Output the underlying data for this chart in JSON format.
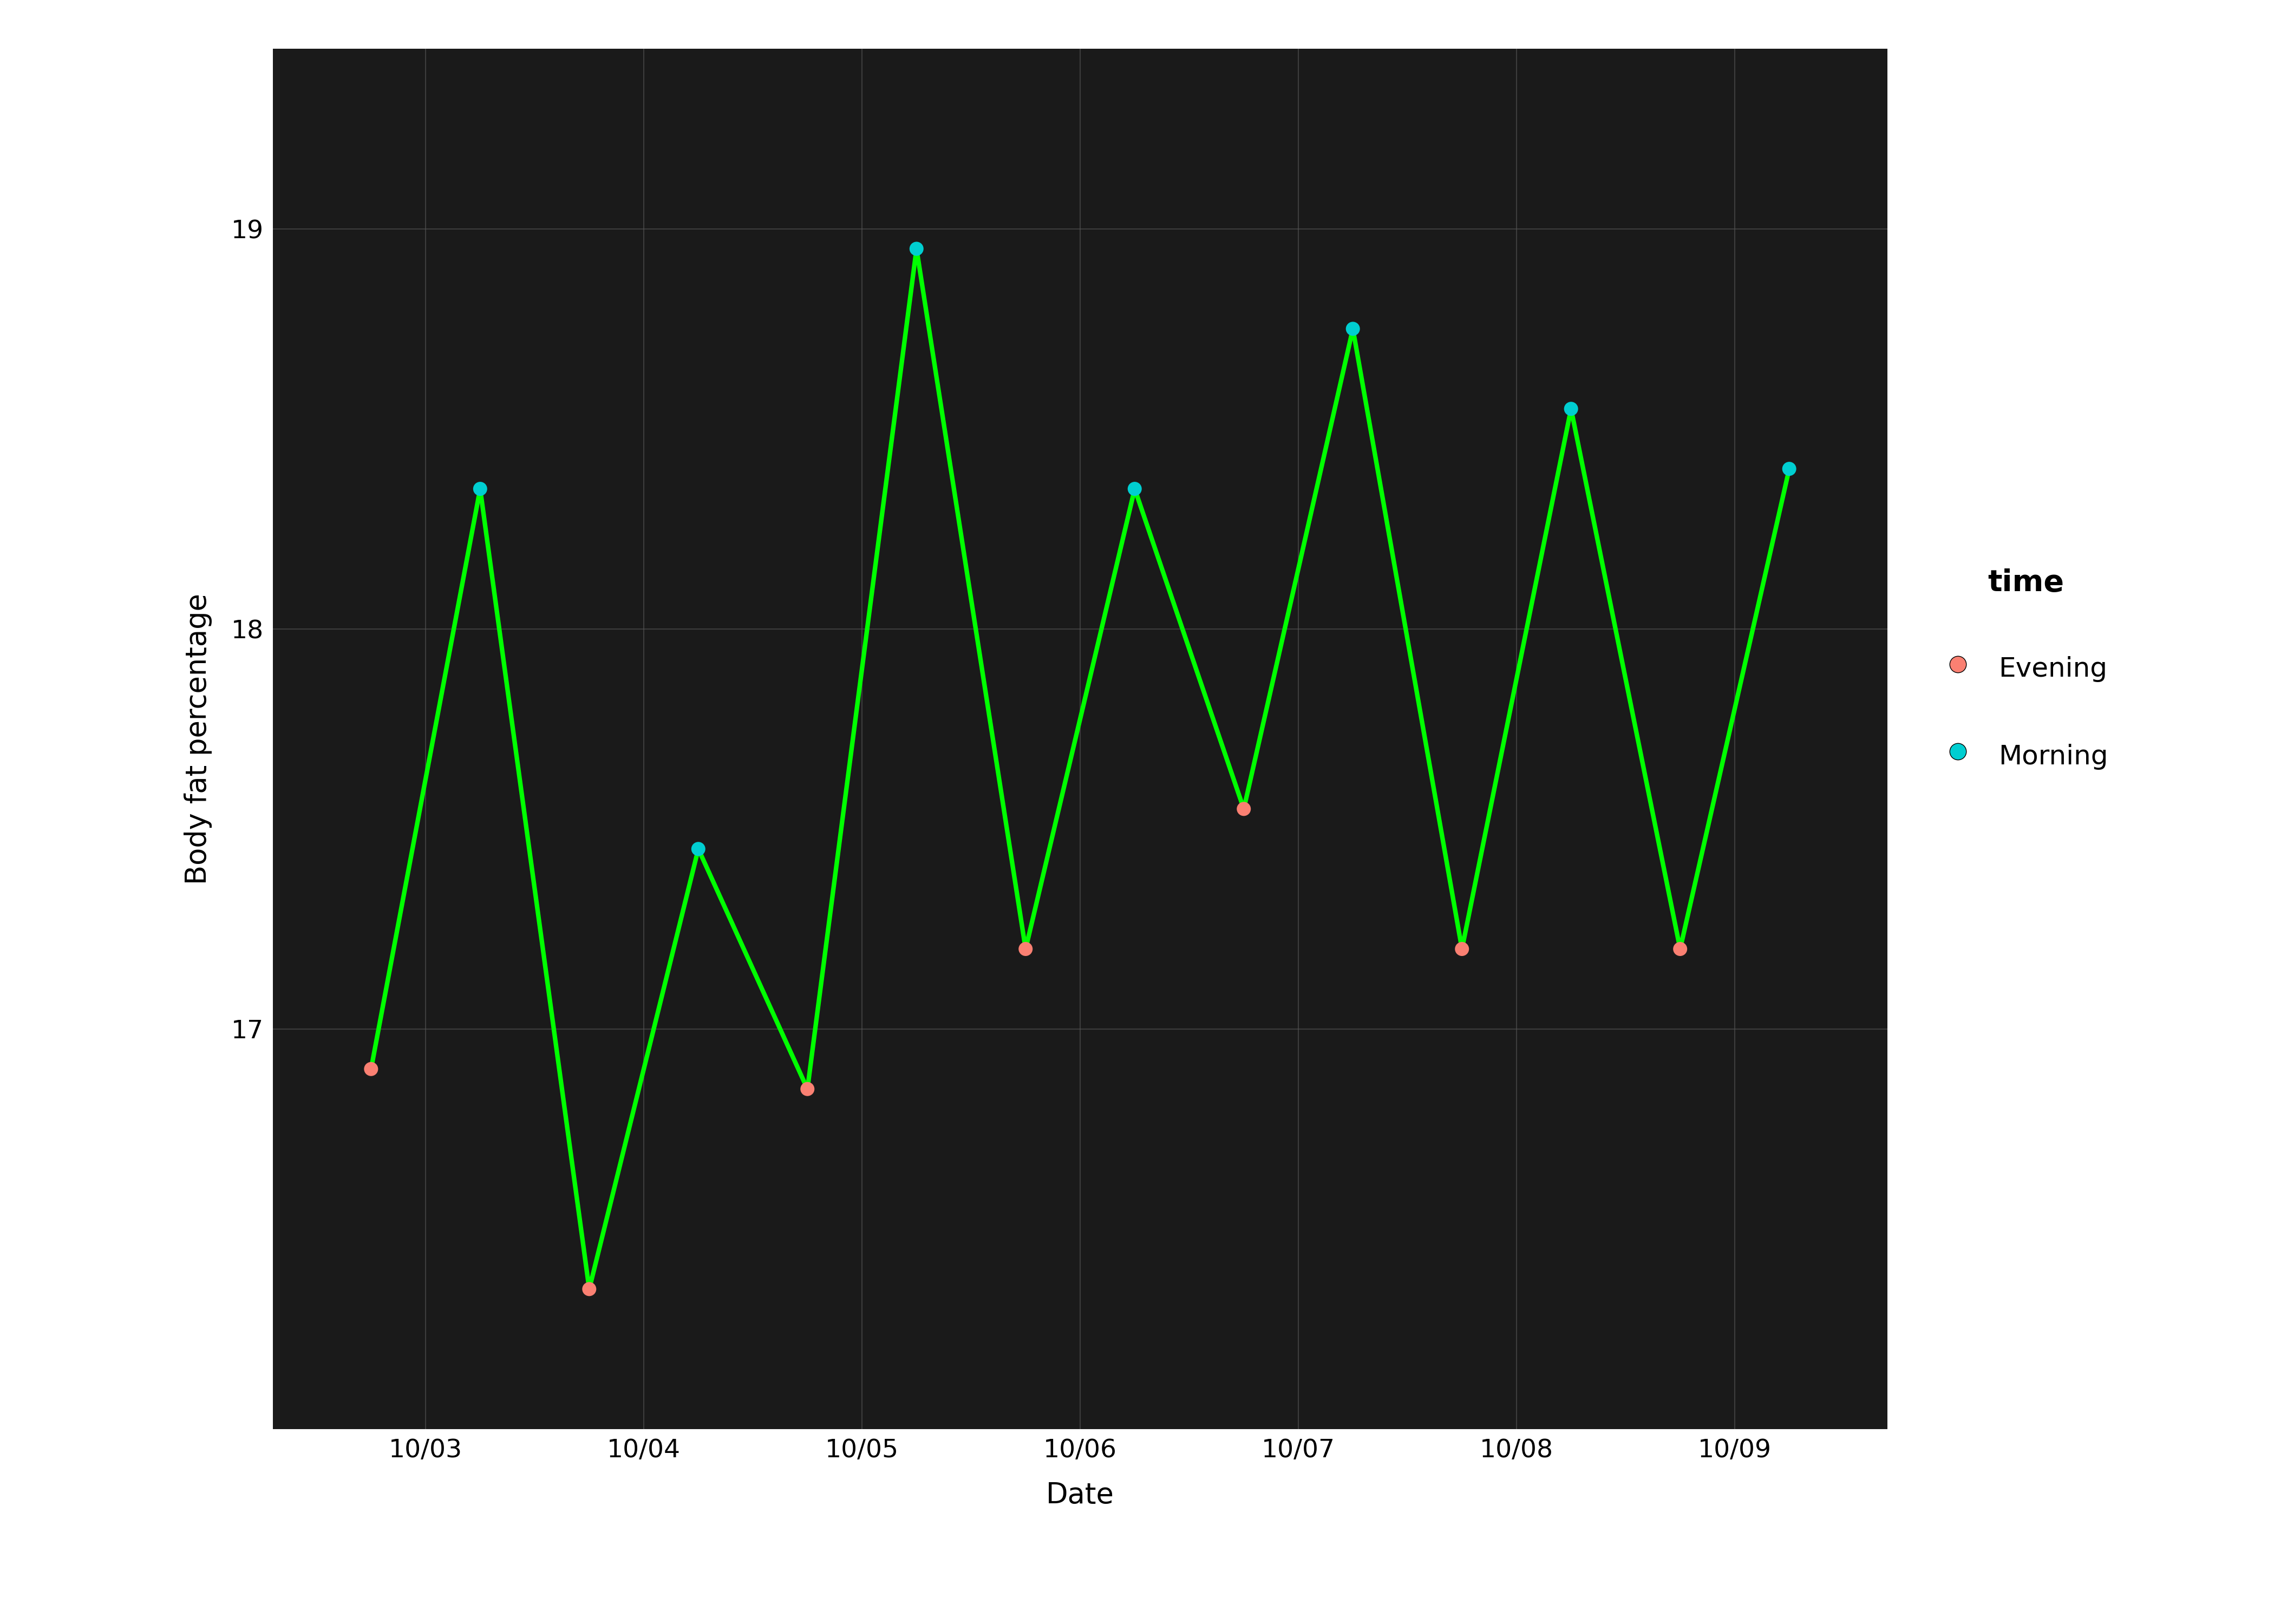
{
  "xlabel": "Date",
  "ylabel": "Body fat percentage",
  "plot_bg_color": "#1a1a1a",
  "line_color": "#00FF00",
  "evening_color": "#FA8072",
  "morning_color": "#00CED1",
  "grid_color": "#555555",
  "legend_title": "time",
  "x_numeric": [
    0.75,
    1.25,
    1.75,
    2.25,
    2.75,
    3.25,
    3.75,
    4.25,
    4.75,
    5.25,
    5.75,
    6.25,
    6.75,
    7.25
  ],
  "values": [
    16.9,
    18.35,
    16.35,
    17.45,
    16.85,
    18.95,
    17.2,
    18.35,
    17.55,
    18.75,
    17.2,
    18.55,
    17.2,
    18.4
  ],
  "time": [
    "Evening",
    "Morning",
    "Evening",
    "Morning",
    "Evening",
    "Morning",
    "Evening",
    "Morning",
    "Evening",
    "Morning",
    "Evening",
    "Morning",
    "Evening",
    "Morning"
  ],
  "x_ticks": [
    1,
    2,
    3,
    4,
    5,
    6,
    7
  ],
  "x_tick_labels": [
    "10/03",
    "10/04",
    "10/05",
    "10/06",
    "10/07",
    "10/08",
    "10/09"
  ],
  "xlim": [
    0.3,
    7.7
  ],
  "ylim": [
    16.0,
    19.45
  ],
  "y_ticks": [
    17,
    18,
    19
  ],
  "marker_size": 350,
  "line_width": 6,
  "tick_fontsize": 34,
  "label_fontsize": 38,
  "legend_title_fontsize": 40,
  "legend_fontsize": 36
}
